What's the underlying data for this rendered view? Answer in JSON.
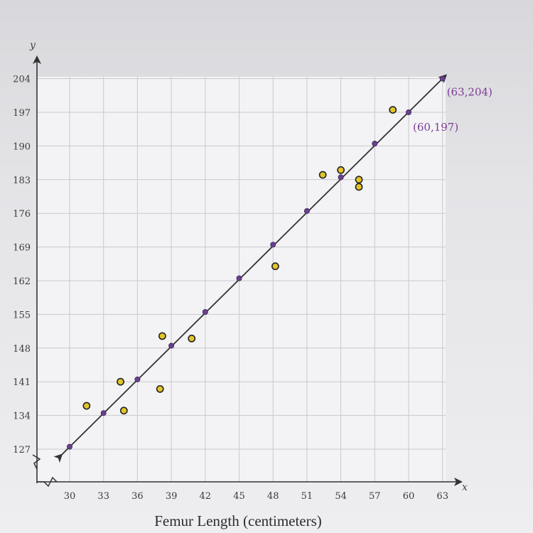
{
  "chart_data": {
    "type": "scatter",
    "title": "",
    "xlabel": "Femur Length (centimeters)",
    "ylabel": "",
    "x_axis_name": "x",
    "y_axis_name": "y",
    "x_ticks": [
      30,
      33,
      36,
      39,
      42,
      45,
      48,
      51,
      54,
      57,
      60,
      63
    ],
    "y_ticks": [
      127,
      134,
      141,
      148,
      155,
      162,
      169,
      176,
      183,
      190,
      197,
      204
    ],
    "xlim": [
      30,
      63
    ],
    "ylim": [
      127,
      204
    ],
    "grid": true,
    "series": [
      {
        "kind": "points",
        "marker": "open-circle",
        "color": "#e3c52a",
        "points": [
          {
            "x": 31.5,
            "y": 136
          },
          {
            "x": 34.5,
            "y": 141
          },
          {
            "x": 34.8,
            "y": 135
          },
          {
            "x": 38.0,
            "y": 139.5
          },
          {
            "x": 38.2,
            "y": 150.5
          },
          {
            "x": 40.8,
            "y": 150
          },
          {
            "x": 48.2,
            "y": 165
          },
          {
            "x": 52.4,
            "y": 184
          },
          {
            "x": 54.0,
            "y": 185
          },
          {
            "x": 55.6,
            "y": 183
          },
          {
            "x": 55.6,
            "y": 181.5
          },
          {
            "x": 58.6,
            "y": 197.5
          }
        ]
      },
      {
        "kind": "trend-line",
        "color": "#333333",
        "marker_color": "#6a3f8e",
        "points": [
          {
            "x": 30,
            "y": 127.5
          },
          {
            "x": 33,
            "y": 134.5
          },
          {
            "x": 36,
            "y": 141.5
          },
          {
            "x": 39,
            "y": 148.5
          },
          {
            "x": 42,
            "y": 155.5
          },
          {
            "x": 45,
            "y": 162.5
          },
          {
            "x": 48,
            "y": 169.5
          },
          {
            "x": 51,
            "y": 176.5
          },
          {
            "x": 54,
            "y": 183.5
          },
          {
            "x": 57,
            "y": 190.5
          },
          {
            "x": 60,
            "y": 197
          },
          {
            "x": 63,
            "y": 204
          }
        ]
      }
    ],
    "annotations": [
      {
        "text": "(63,204)",
        "x": 63,
        "y": 204
      },
      {
        "text": "(60,197)",
        "x": 60,
        "y": 197
      }
    ]
  }
}
